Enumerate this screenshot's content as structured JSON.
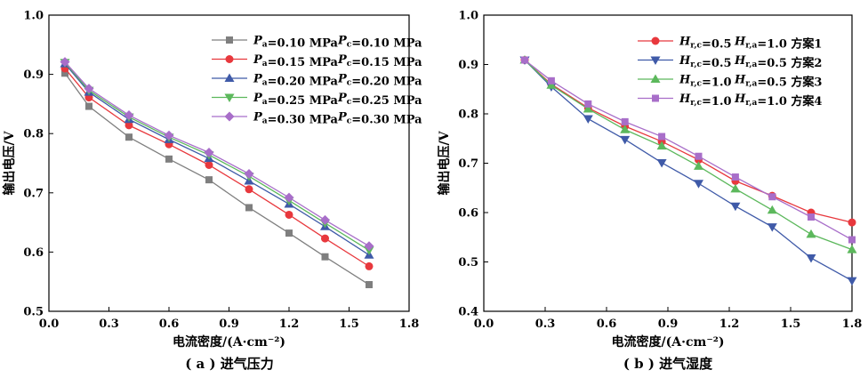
{
  "chart_data": [
    {
      "type": "line",
      "caption": "( a ) 进气压力",
      "xlabel": "电流密度/(A·cm⁻²)",
      "ylabel": "输出电压/V",
      "xlim": [
        0.0,
        1.8
      ],
      "ylim": [
        0.5,
        1.0
      ],
      "xticks": [
        "0.0",
        "0.3",
        "0.6",
        "0.9",
        "1.2",
        "1.5",
        "1.8"
      ],
      "yticks": [
        "0.5",
        "0.6",
        "0.7",
        "0.8",
        "0.9",
        "1.0"
      ],
      "grid": false,
      "legend_position": "top-right",
      "x": [
        0.08,
        0.2,
        0.4,
        0.6,
        0.8,
        1.0,
        1.2,
        1.38,
        1.6
      ],
      "series": [
        {
          "legend": {
            "sym1": "P",
            "sub1": "a",
            "val1": "=0.10 MPa",
            "sym2": "P",
            "sub2": "c",
            "val2": "=0.10 MPa"
          },
          "color": "#7f7f7f",
          "marker": "square",
          "values": [
            0.902,
            0.846,
            0.794,
            0.757,
            0.722,
            0.675,
            0.632,
            0.592,
            0.545
          ]
        },
        {
          "legend": {
            "sym1": "P",
            "sub1": "a",
            "val1": "=0.15 MPa",
            "sym2": "P",
            "sub2": "c",
            "val2": "=0.15 MPa"
          },
          "color": "#e8383d",
          "marker": "circle",
          "values": [
            0.91,
            0.861,
            0.814,
            0.782,
            0.747,
            0.706,
            0.663,
            0.623,
            0.576
          ]
        },
        {
          "legend": {
            "sym1": "P",
            "sub1": "a",
            "val1": "=0.20 MPa",
            "sym2": "P",
            "sub2": "c",
            "val2": "=0.20 MPa"
          },
          "color": "#3f5aa8",
          "marker": "triangle-up",
          "values": [
            0.918,
            0.87,
            0.824,
            0.79,
            0.758,
            0.72,
            0.681,
            0.643,
            0.595
          ]
        },
        {
          "legend": {
            "sym1": "P",
            "sub1": "a",
            "val1": "=0.25 MPa",
            "sym2": "P",
            "sub2": "c",
            "val2": "=0.25 MPa"
          },
          "color": "#5cb85c",
          "marker": "triangle-down",
          "values": [
            0.92,
            0.873,
            0.828,
            0.794,
            0.764,
            0.728,
            0.687,
            0.649,
            0.603
          ]
        },
        {
          "legend": {
            "sym1": "P",
            "sub1": "a",
            "val1": "=0.30 MPa",
            "sym2": "P",
            "sub2": "c",
            "val2": "=0.30 MPa"
          },
          "color": "#a86ec9",
          "marker": "diamond",
          "values": [
            0.921,
            0.876,
            0.831,
            0.797,
            0.768,
            0.732,
            0.692,
            0.654,
            0.61
          ]
        }
      ]
    },
    {
      "type": "line",
      "caption": "( b ) 进气湿度",
      "xlabel": "电流密度/(A·cm⁻²)",
      "ylabel": "输出电压/V",
      "xlim": [
        0.0,
        1.8
      ],
      "ylim": [
        0.4,
        1.0
      ],
      "xticks": [
        "0.0",
        "0.3",
        "0.6",
        "0.9",
        "1.2",
        "1.5",
        "1.8"
      ],
      "yticks": [
        "0.4",
        "0.5",
        "0.6",
        "0.7",
        "0.8",
        "0.9",
        "1.0"
      ],
      "grid": false,
      "legend_position": "top-right",
      "x": [
        0.2,
        0.33,
        0.51,
        0.69,
        0.87,
        1.05,
        1.23,
        1.41,
        1.6,
        1.8
      ],
      "series": [
        {
          "legend": {
            "sym1": "H",
            "sub1": "r,c",
            "val1": "=0.5",
            "sym2": "H",
            "sub2": "r,a",
            "val2": "=1.0",
            "tail": "方案1"
          },
          "color": "#e8383d",
          "marker": "circle",
          "values": [
            0.909,
            0.86,
            0.812,
            0.775,
            0.744,
            0.707,
            0.664,
            0.634,
            0.6,
            0.58
          ]
        },
        {
          "legend": {
            "sym1": "H",
            "sub1": "r,c",
            "val1": "=0.5",
            "sym2": "H",
            "sub2": "r,a",
            "val2": "=0.5",
            "tail": "方案2"
          },
          "color": "#3f5aa8",
          "marker": "triangle-down",
          "values": [
            0.909,
            0.855,
            0.79,
            0.748,
            0.701,
            0.659,
            0.613,
            0.571,
            0.508,
            0.462
          ]
        },
        {
          "legend": {
            "sym1": "H",
            "sub1": "r,c",
            "val1": "=1.0",
            "sym2": "H",
            "sub2": "r,a",
            "val2": "=0.5",
            "tail": "方案3"
          },
          "color": "#5cb85c",
          "marker": "triangle-up",
          "values": [
            0.909,
            0.858,
            0.81,
            0.768,
            0.735,
            0.694,
            0.648,
            0.605,
            0.556,
            0.525
          ]
        },
        {
          "legend": {
            "sym1": "H",
            "sub1": "r,c",
            "val1": "=1.0",
            "sym2": "H",
            "sub2": "r,a",
            "val2": "=1.0",
            "tail": "方案4"
          },
          "color": "#a86ec9",
          "marker": "square",
          "values": [
            0.909,
            0.867,
            0.82,
            0.784,
            0.754,
            0.714,
            0.672,
            0.632,
            0.591,
            0.545
          ]
        }
      ]
    }
  ]
}
